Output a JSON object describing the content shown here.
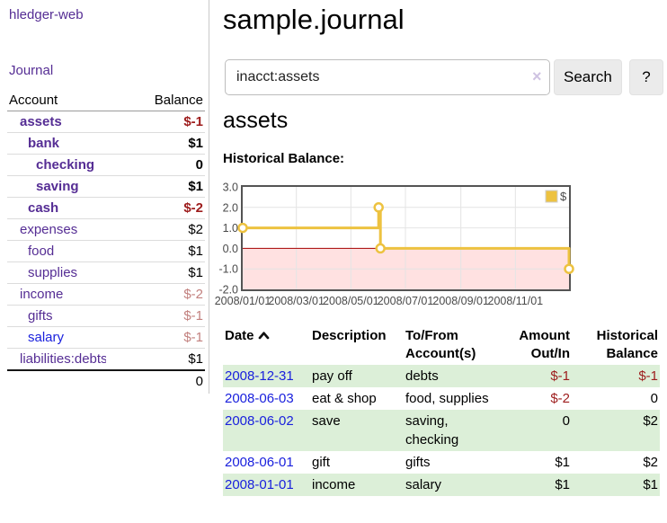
{
  "brand": "hledger-web",
  "nav": {
    "journal": "Journal"
  },
  "sidebar": {
    "header": {
      "account": "Account",
      "balance": "Balance"
    },
    "accounts": [
      {
        "name": "assets",
        "indent": 1,
        "bold": true,
        "balance": "$-1",
        "balance_tone": "neg",
        "name_tone": "purple"
      },
      {
        "name": "bank",
        "indent": 2,
        "bold": true,
        "balance": "$1",
        "balance_tone": "normal",
        "name_tone": "purple"
      },
      {
        "name": "checking",
        "indent": 3,
        "bold": true,
        "balance": "0",
        "balance_tone": "normal",
        "name_tone": "purple"
      },
      {
        "name": "saving",
        "indent": 3,
        "bold": true,
        "balance": "$1",
        "balance_tone": "normal",
        "name_tone": "purple"
      },
      {
        "name": "cash",
        "indent": 2,
        "bold": true,
        "balance": "$-2",
        "balance_tone": "neg",
        "name_tone": "purple"
      },
      {
        "name": "expenses",
        "indent": 1,
        "bold": false,
        "balance": "$2",
        "balance_tone": "normal",
        "name_tone": "purple"
      },
      {
        "name": "food",
        "indent": 2,
        "bold": false,
        "balance": "$1",
        "balance_tone": "normal",
        "name_tone": "purple"
      },
      {
        "name": "supplies",
        "indent": 2,
        "bold": false,
        "balance": "$1",
        "balance_tone": "normal",
        "name_tone": "purple"
      },
      {
        "name": "income",
        "indent": 1,
        "bold": false,
        "balance": "$-2",
        "balance_tone": "neg-faded",
        "name_tone": "purple"
      },
      {
        "name": "gifts",
        "indent": 2,
        "bold": false,
        "balance": "$-1",
        "balance_tone": "neg-faded",
        "name_tone": "purple"
      },
      {
        "name": "salary",
        "indent": 2,
        "bold": false,
        "balance": "$-1",
        "balance_tone": "neg-faded",
        "name_tone": "blue"
      },
      {
        "name": "liabilities:debts",
        "indent": 1,
        "bold": false,
        "balance": "$1",
        "balance_tone": "normal",
        "name_tone": "purple"
      }
    ],
    "total": "0"
  },
  "main": {
    "title": "sample.journal",
    "search": {
      "value": "inacct:assets",
      "clear_icon": "×",
      "search_button": "Search",
      "help_button": "?"
    },
    "account_title": "assets",
    "chart_heading": "Historical Balance:"
  },
  "chart_data": {
    "type": "line",
    "title": "Historical Balance",
    "step": true,
    "xlim": [
      "2008/01/01",
      "2008/12/31"
    ],
    "ylim": [
      -2,
      3
    ],
    "yticks": [
      3,
      2,
      1,
      0,
      -1,
      -2
    ],
    "xticks": [
      "2008/01/01",
      "2008/03/01",
      "2008/05/01",
      "2008/07/01",
      "2008/09/01",
      "2008/11/01"
    ],
    "series": [
      {
        "name": "$",
        "color": "#edc240",
        "points": [
          [
            "2008/01/01",
            1
          ],
          [
            "2008/06/01",
            2
          ],
          [
            "2008/06/03",
            0
          ],
          [
            "2008/12/31",
            -1
          ]
        ]
      }
    ],
    "legend_position": "top-right",
    "grid": true,
    "zero_line_color": "#a40000",
    "negative_region_fill": "rgba(255,80,80,0.17)"
  },
  "register": {
    "columns": [
      "Date",
      "Description",
      "To/From Account(s)",
      "Amount Out/In",
      "Historical Balance"
    ],
    "rows": [
      {
        "date": "2008-12-31",
        "description": "pay off",
        "accounts": "debts",
        "amount": "$-1",
        "amount_neg": true,
        "balance": "$-1",
        "balance_neg": true
      },
      {
        "date": "2008-06-03",
        "description": "eat & shop",
        "accounts": "food, supplies",
        "amount": "$-2",
        "amount_neg": true,
        "balance": "0",
        "balance_neg": false
      },
      {
        "date": "2008-06-02",
        "description": "save",
        "accounts": "saving,\nchecking",
        "amount": "0",
        "amount_neg": false,
        "balance": "$2",
        "balance_neg": false
      },
      {
        "date": "2008-06-01",
        "description": "gift",
        "accounts": "gifts",
        "amount": "$1",
        "amount_neg": false,
        "balance": "$2",
        "balance_neg": false
      },
      {
        "date": "2008-01-01",
        "description": "income",
        "accounts": "salary",
        "amount": "$1",
        "amount_neg": false,
        "balance": "$1",
        "balance_neg": false
      }
    ]
  }
}
